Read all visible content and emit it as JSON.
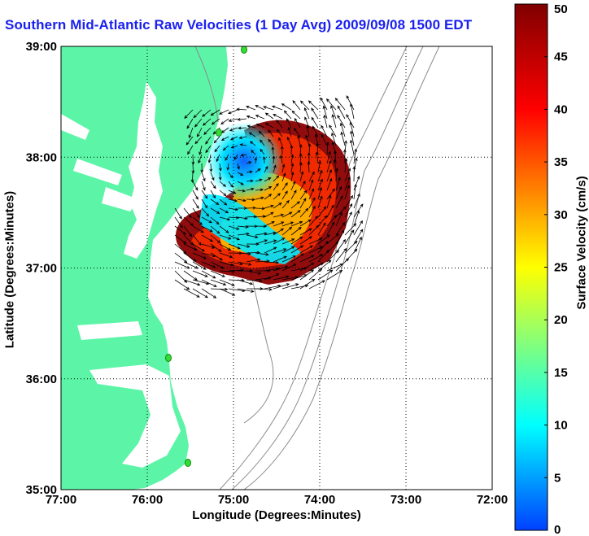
{
  "title": "Southern Mid-Atlantic Raw Velocities (1 Day Avg) 2009/09/08 1500 EDT",
  "chart_data": {
    "type": "heatmap",
    "title": "Southern Mid-Atlantic Raw Velocities (1 Day Avg) 2009/09/08 1500 EDT",
    "xlabel": "Longitude (Degrees:Minutes)",
    "ylabel": "Latitude (Degrees:Minutes)",
    "xlim": [
      -77,
      -72
    ],
    "ylim": [
      35,
      39
    ],
    "xticks": [
      "77:00",
      "76:00",
      "75:00",
      "74:00",
      "73:00",
      "72:00"
    ],
    "yticks": [
      "35:00",
      "36:00",
      "37:00",
      "38:00",
      "39:00"
    ],
    "grid": true,
    "colorbar": {
      "label": "Surface Velocity (cm/s)",
      "range": [
        0,
        50
      ],
      "ticks": [
        "0",
        "5",
        "10",
        "15",
        "20",
        "25",
        "30",
        "35",
        "40",
        "45",
        "50"
      ]
    },
    "features": {
      "eddy_center": [
        -74.85,
        37.95
      ],
      "eddy_speed": 5,
      "peak_speed": 50
    },
    "colors": {
      "land": "#5cf5a8",
      "title": "#1a20f0",
      "station": "#33dd33",
      "contour": "#8a8a8a"
    }
  }
}
